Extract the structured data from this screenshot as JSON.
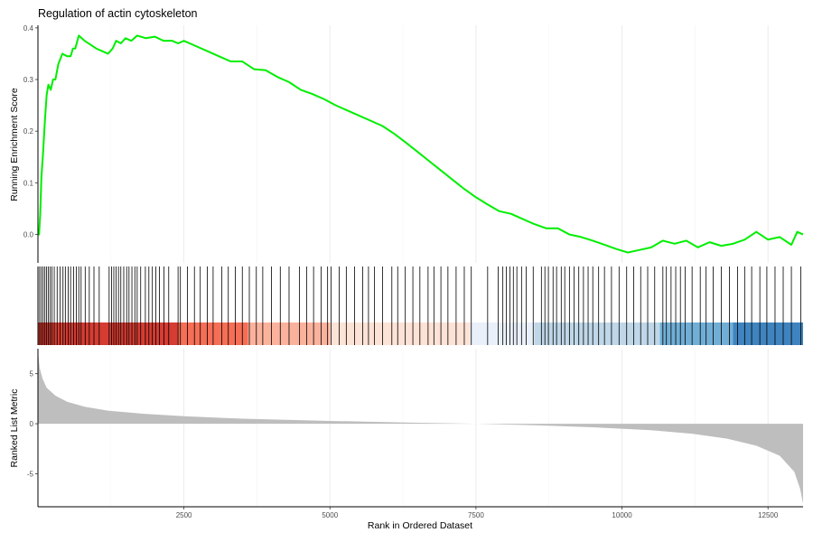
{
  "chart_data": {
    "type": "line",
    "title": "Regulation of actin cytoskeleton",
    "xlabel": "Rank in Ordered Dataset",
    "ylabel_top": "Running Enrichment Score",
    "ylabel_bottom": "Ranked List Metric",
    "x_range": [
      1,
      13100
    ],
    "x_ticks": [
      2500,
      5000,
      7500,
      10000,
      12500
    ],
    "x_tick_labels": [
      "2500",
      "5000",
      "7500",
      "10000",
      "12500"
    ],
    "es": {
      "ylim": [
        -0.055,
        0.405
      ],
      "y_ticks": [
        0.0,
        0.1,
        0.2,
        0.3,
        0.4
      ],
      "y_tick_labels": [
        "0.0",
        "0.1",
        "0.2",
        "0.3",
        "0.4"
      ],
      "color": "#00ee00",
      "points": [
        [
          0,
          0.0
        ],
        [
          20,
          0.0
        ],
        [
          40,
          0.04
        ],
        [
          60,
          0.11
        ],
        [
          90,
          0.16
        ],
        [
          120,
          0.22
        ],
        [
          150,
          0.27
        ],
        [
          180,
          0.29
        ],
        [
          220,
          0.28
        ],
        [
          260,
          0.3
        ],
        [
          300,
          0.3
        ],
        [
          350,
          0.33
        ],
        [
          420,
          0.35
        ],
        [
          500,
          0.345
        ],
        [
          560,
          0.345
        ],
        [
          600,
          0.36
        ],
        [
          640,
          0.36
        ],
        [
          700,
          0.385
        ],
        [
          800,
          0.375
        ],
        [
          1000,
          0.36
        ],
        [
          1200,
          0.35
        ],
        [
          1280,
          0.36
        ],
        [
          1340,
          0.375
        ],
        [
          1420,
          0.37
        ],
        [
          1500,
          0.38
        ],
        [
          1600,
          0.375
        ],
        [
          1700,
          0.385
        ],
        [
          1850,
          0.38
        ],
        [
          2000,
          0.383
        ],
        [
          2150,
          0.375
        ],
        [
          2300,
          0.375
        ],
        [
          2400,
          0.37
        ],
        [
          2500,
          0.375
        ],
        [
          2700,
          0.365
        ],
        [
          2900,
          0.355
        ],
        [
          3100,
          0.345
        ],
        [
          3300,
          0.335
        ],
        [
          3500,
          0.335
        ],
        [
          3700,
          0.32
        ],
        [
          3900,
          0.318
        ],
        [
          4100,
          0.305
        ],
        [
          4300,
          0.295
        ],
        [
          4500,
          0.28
        ],
        [
          4700,
          0.272
        ],
        [
          4900,
          0.262
        ],
        [
          5100,
          0.25
        ],
        [
          5300,
          0.24
        ],
        [
          5500,
          0.23
        ],
        [
          5700,
          0.22
        ],
        [
          5900,
          0.21
        ],
        [
          6100,
          0.195
        ],
        [
          6300,
          0.178
        ],
        [
          6500,
          0.16
        ],
        [
          6700,
          0.142
        ],
        [
          6900,
          0.124
        ],
        [
          7100,
          0.106
        ],
        [
          7300,
          0.088
        ],
        [
          7500,
          0.072
        ],
        [
          7700,
          0.058
        ],
        [
          7900,
          0.045
        ],
        [
          8100,
          0.04
        ],
        [
          8300,
          0.03
        ],
        [
          8500,
          0.02
        ],
        [
          8700,
          0.012
        ],
        [
          8900,
          0.012
        ],
        [
          9100,
          0.0
        ],
        [
          9300,
          -0.005
        ],
        [
          9500,
          -0.012
        ],
        [
          9700,
          -0.02
        ],
        [
          9900,
          -0.028
        ],
        [
          10100,
          -0.035
        ],
        [
          10300,
          -0.03
        ],
        [
          10500,
          -0.025
        ],
        [
          10700,
          -0.012
        ],
        [
          10900,
          -0.018
        ],
        [
          11100,
          -0.012
        ],
        [
          11300,
          -0.025
        ],
        [
          11500,
          -0.015
        ],
        [
          11700,
          -0.022
        ],
        [
          11900,
          -0.018
        ],
        [
          12100,
          -0.01
        ],
        [
          12300,
          0.005
        ],
        [
          12500,
          -0.01
        ],
        [
          12700,
          -0.005
        ],
        [
          12900,
          -0.02
        ],
        [
          13000,
          0.005
        ],
        [
          13100,
          0.0
        ]
      ]
    },
    "hits": [
      30,
      60,
      90,
      120,
      150,
      180,
      210,
      240,
      280,
      330,
      380,
      430,
      470,
      520,
      560,
      610,
      660,
      700,
      740,
      810,
      880,
      960,
      1050,
      1220,
      1260,
      1300,
      1340,
      1380,
      1420,
      1470,
      1520,
      1560,
      1610,
      1660,
      1700,
      1760,
      1840,
      1900,
      1960,
      2020,
      2080,
      2160,
      2240,
      2400,
      2440,
      2560,
      2680,
      2780,
      2900,
      3000,
      3150,
      3260,
      3380,
      3500,
      3620,
      3740,
      3850,
      4000,
      4150,
      4300,
      4480,
      4600,
      4720,
      4850,
      4960,
      5020,
      5160,
      5280,
      5420,
      5560,
      5660,
      5760,
      5900,
      6060,
      6160,
      6290,
      6420,
      6540,
      6680,
      6780,
      6900,
      7020,
      7160,
      7300,
      7420,
      7700,
      7880,
      7960,
      8020,
      8080,
      8140,
      8200,
      8280,
      8360,
      8480,
      8620,
      8680,
      8740,
      8820,
      8880,
      8960,
      9020,
      9100,
      9180,
      9260,
      9340,
      9420,
      9500,
      9600,
      9700,
      9820,
      9950,
      10080,
      10200,
      10320,
      10440,
      10560,
      10700,
      10760,
      10840,
      10920,
      11000,
      11080,
      11200,
      11340,
      11440,
      11560,
      11700,
      11840,
      11980,
      12100,
      12220,
      12360,
      12480,
      12620,
      12760,
      12900,
      13060
    ],
    "color_band": [
      {
        "from": 0,
        "to": 2400,
        "color": "#d53c32"
      },
      {
        "from": 2400,
        "to": 3600,
        "color": "#f56e55"
      },
      {
        "from": 3600,
        "to": 5000,
        "color": "#fbb29c"
      },
      {
        "from": 5000,
        "to": 7400,
        "color": "#fde2d6"
      },
      {
        "from": 7400,
        "to": 8500,
        "color": "#e9f0fa"
      },
      {
        "from": 8500,
        "to": 10650,
        "color": "#bfd7e8"
      },
      {
        "from": 10650,
        "to": 11900,
        "color": "#71aed6"
      },
      {
        "from": 11900,
        "to": 13100,
        "color": "#3f84bf"
      }
    ],
    "metric": {
      "ylim": [
        -8.3,
        7.5
      ],
      "y_ticks": [
        -5,
        0,
        5
      ],
      "y_tick_labels": [
        "-5",
        "0",
        "5"
      ],
      "fill": "#bebebe",
      "points": [
        [
          0,
          7.3
        ],
        [
          30,
          5.6
        ],
        [
          80,
          4.5
        ],
        [
          150,
          3.6
        ],
        [
          300,
          2.8
        ],
        [
          500,
          2.2
        ],
        [
          800,
          1.7
        ],
        [
          1200,
          1.3
        ],
        [
          1800,
          1.0
        ],
        [
          2500,
          0.75
        ],
        [
          3500,
          0.5
        ],
        [
          5000,
          0.28
        ],
        [
          6500,
          0.1
        ],
        [
          7500,
          0.0
        ],
        [
          8500,
          -0.15
        ],
        [
          9500,
          -0.35
        ],
        [
          10500,
          -0.65
        ],
        [
          11200,
          -1.0
        ],
        [
          11800,
          -1.5
        ],
        [
          12300,
          -2.2
        ],
        [
          12700,
          -3.2
        ],
        [
          12950,
          -4.8
        ],
        [
          13050,
          -6.5
        ],
        [
          13100,
          -8.0
        ]
      ]
    }
  }
}
